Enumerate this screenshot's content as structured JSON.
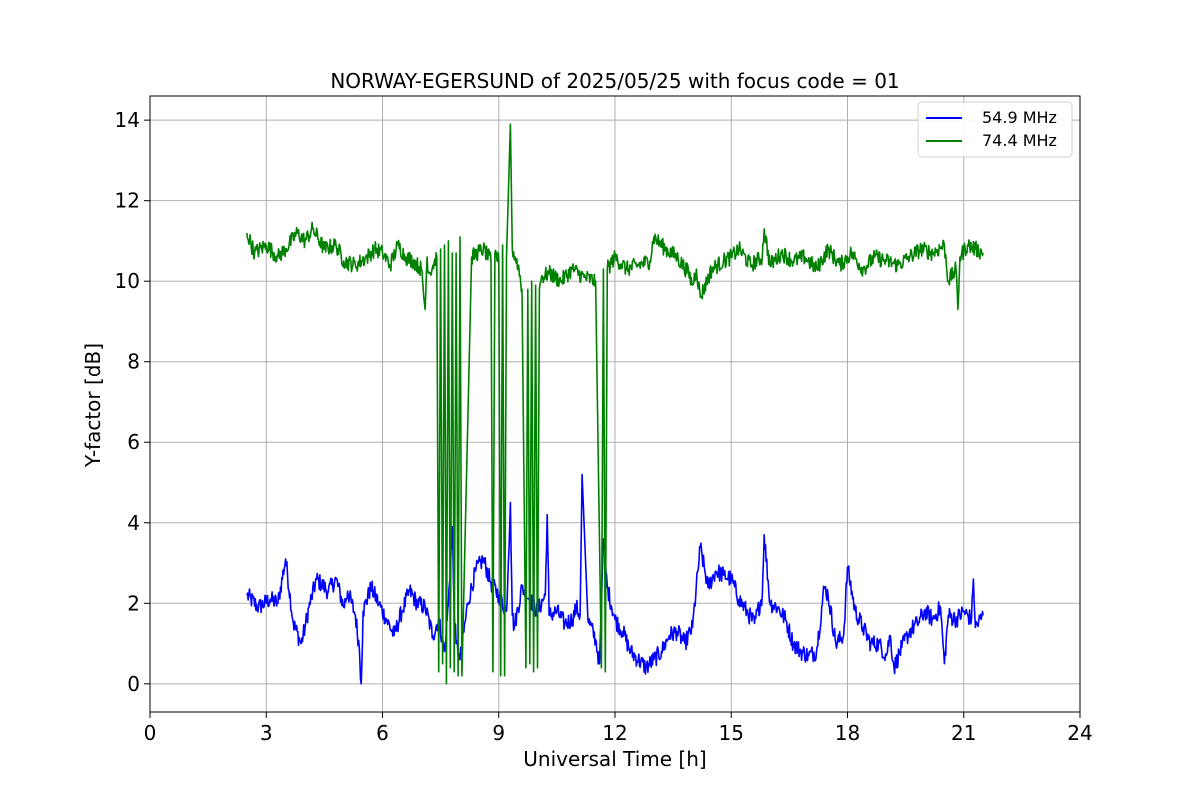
{
  "chart_data": {
    "type": "line",
    "title": "NORWAY-EGERSUND of 2025/05/25 with focus code = 01",
    "xlabel": "Universal Time [h]",
    "ylabel": "Y-factor [dB]",
    "xlim": [
      0,
      24
    ],
    "ylim": [
      -0.7,
      14.6
    ],
    "xticks": [
      "0",
      "3",
      "6",
      "9",
      "12",
      "15",
      "18",
      "21",
      "24"
    ],
    "yticks": [
      "0",
      "2",
      "4",
      "6",
      "8",
      "10",
      "12",
      "14"
    ],
    "grid": true,
    "legend_position": "top-right",
    "series": [
      {
        "name": "54.9 MHz",
        "color": "#0000ff",
        "x": [
          2.5,
          2.8,
          3.1,
          3.3,
          3.5,
          3.7,
          3.9,
          4.0,
          4.1,
          4.3,
          4.6,
          4.8,
          5.0,
          5.1,
          5.3,
          5.4,
          5.45,
          5.5,
          5.7,
          5.9,
          6.1,
          6.3,
          6.5,
          6.7,
          6.9,
          7.1,
          7.3,
          7.45,
          7.6,
          7.7,
          7.8,
          7.85,
          7.9,
          8.0,
          8.2,
          8.4,
          8.6,
          8.8,
          9.0,
          9.2,
          9.3,
          9.35,
          9.4,
          9.6,
          9.8,
          10.0,
          10.2,
          10.25,
          10.3,
          10.5,
          10.7,
          10.9,
          11.0,
          11.1,
          11.15,
          11.3,
          11.5,
          11.6,
          11.7,
          11.8,
          12.0,
          12.2,
          12.4,
          12.6,
          12.8,
          13.0,
          13.2,
          13.4,
          13.6,
          13.8,
          14.0,
          14.2,
          14.4,
          14.6,
          14.8,
          15.0,
          15.2,
          15.4,
          15.6,
          15.8,
          15.85,
          16.0,
          16.2,
          16.4,
          16.6,
          16.8,
          17.0,
          17.2,
          17.4,
          17.5,
          17.7,
          17.9,
          18.0,
          18.2,
          18.4,
          18.6,
          18.8,
          19.0,
          19.1,
          19.2,
          19.4,
          19.6,
          19.8,
          20.0,
          20.2,
          20.4,
          20.5,
          20.6,
          20.8,
          21.0,
          21.2,
          21.25,
          21.3,
          21.5
        ],
        "y": [
          2.2,
          1.9,
          2.1,
          2.0,
          3.1,
          1.5,
          1.0,
          1.4,
          1.9,
          2.6,
          2.3,
          2.6,
          1.9,
          2.3,
          1.7,
          0.9,
          0.0,
          1.8,
          2.4,
          2.0,
          1.6,
          1.2,
          1.8,
          2.3,
          2.0,
          1.9,
          1.2,
          1.6,
          0.8,
          2.0,
          3.9,
          1.8,
          1.0,
          0.6,
          2.0,
          2.8,
          3.1,
          2.5,
          2.2,
          1.8,
          4.5,
          1.7,
          1.4,
          2.4,
          2.1,
          1.8,
          2.2,
          4.2,
          1.7,
          1.8,
          1.5,
          1.6,
          1.9,
          1.7,
          5.2,
          1.6,
          1.1,
          0.5,
          3.6,
          2.4,
          1.6,
          1.3,
          0.8,
          0.6,
          0.4,
          0.6,
          0.8,
          1.2,
          1.3,
          1.0,
          1.4,
          3.4,
          2.4,
          2.8,
          2.7,
          2.6,
          2.1,
          1.8,
          1.5,
          2.2,
          3.7,
          2.0,
          1.9,
          1.6,
          1.0,
          0.8,
          0.7,
          0.8,
          2.4,
          2.2,
          1.0,
          1.2,
          2.9,
          1.8,
          1.4,
          1.0,
          1.0,
          0.7,
          1.2,
          0.4,
          0.9,
          1.3,
          1.5,
          1.8,
          1.6,
          1.9,
          0.5,
          1.7,
          1.6,
          1.8,
          1.6,
          2.6,
          1.4,
          1.7
        ]
      },
      {
        "name": "74.4 MHz",
        "color": "#008000",
        "x": [
          2.5,
          2.7,
          3.0,
          3.3,
          3.5,
          3.8,
          4.0,
          4.2,
          4.5,
          4.8,
          5.0,
          5.3,
          5.6,
          5.8,
          6.0,
          6.2,
          6.4,
          6.6,
          6.8,
          7.0,
          7.1,
          7.15,
          7.2,
          7.4,
          7.45,
          7.5,
          7.55,
          7.6,
          7.65,
          7.7,
          7.75,
          7.8,
          7.85,
          7.9,
          7.95,
          8.0,
          8.05,
          8.3,
          8.6,
          8.8,
          8.85,
          8.9,
          9.0,
          9.05,
          9.1,
          9.15,
          9.2,
          9.3,
          9.35,
          9.5,
          9.6,
          9.7,
          9.75,
          9.8,
          9.85,
          9.9,
          9.95,
          10.0,
          10.05,
          10.1,
          10.3,
          10.6,
          10.9,
          11.2,
          11.5,
          11.65,
          11.7,
          11.75,
          11.8,
          12.0,
          12.3,
          12.6,
          12.9,
          13.0,
          13.3,
          13.6,
          13.9,
          14.0,
          14.1,
          14.2,
          14.5,
          14.8,
          15.0,
          15.2,
          15.5,
          15.8,
          15.85,
          16.0,
          16.3,
          16.6,
          16.9,
          17.2,
          17.5,
          17.8,
          18.1,
          18.4,
          18.7,
          19.0,
          19.3,
          19.6,
          19.9,
          20.2,
          20.5,
          20.6,
          20.8,
          20.85,
          20.9,
          21.1,
          21.3,
          21.5
        ],
        "y": [
          11.2,
          10.7,
          10.9,
          10.6,
          10.8,
          11.2,
          11.0,
          11.3,
          10.8,
          10.9,
          10.5,
          10.4,
          10.6,
          10.8,
          10.7,
          10.4,
          10.9,
          10.6,
          10.5,
          10.3,
          9.3,
          10.6,
          10.2,
          10.6,
          0.3,
          10.8,
          0.5,
          10.9,
          0.0,
          11.0,
          0.4,
          10.7,
          0.3,
          10.7,
          0.2,
          11.1,
          0.2,
          10.6,
          10.8,
          10.5,
          0.3,
          10.7,
          10.5,
          0.2,
          10.9,
          0.2,
          10.6,
          13.9,
          10.8,
          10.4,
          9.8,
          0.4,
          9.8,
          0.5,
          10.0,
          0.3,
          9.9,
          0.4,
          9.8,
          10.1,
          10.2,
          10.0,
          10.3,
          10.1,
          10.0,
          0.4,
          10.3,
          0.3,
          10.3,
          10.6,
          10.3,
          10.4,
          10.5,
          11.1,
          10.8,
          10.6,
          10.2,
          9.9,
          10.3,
          9.6,
          10.3,
          10.5,
          10.6,
          10.8,
          10.4,
          10.6,
          11.3,
          10.4,
          10.7,
          10.5,
          10.6,
          10.3,
          10.8,
          10.4,
          10.7,
          10.3,
          10.6,
          10.5,
          10.4,
          10.6,
          10.8,
          10.7,
          10.9,
          10.0,
          10.3,
          9.3,
          10.6,
          10.9,
          10.8,
          10.7
        ]
      }
    ]
  }
}
